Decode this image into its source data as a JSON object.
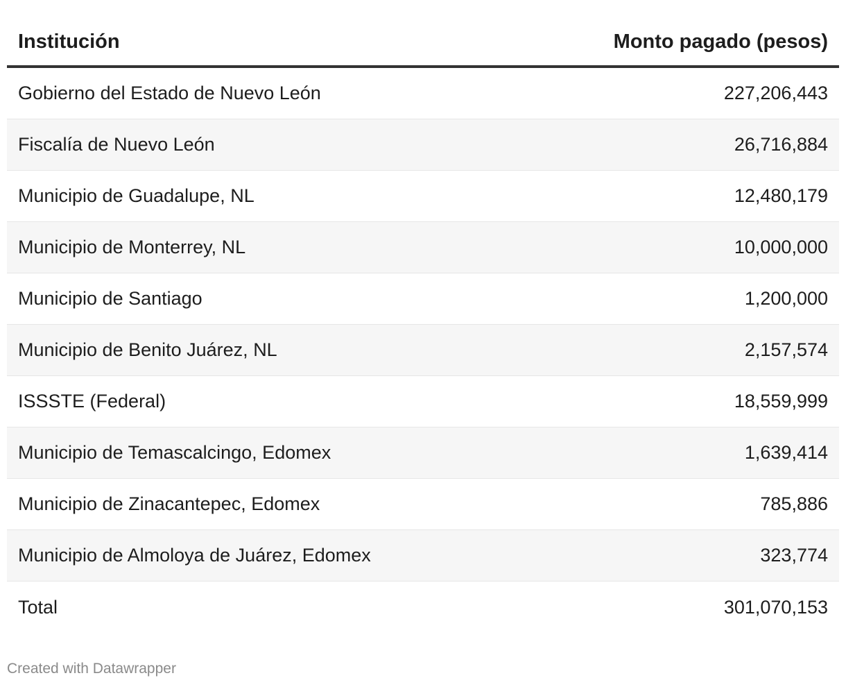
{
  "chart_data": {
    "type": "table",
    "columns": [
      "Institución",
      "Monto pagado (pesos)"
    ],
    "rows": [
      {
        "institucion": "Gobierno del Estado de Nuevo León",
        "monto": "227,206,443"
      },
      {
        "institucion": "Fiscalía de Nuevo León",
        "monto": "26,716,884"
      },
      {
        "institucion": "Municipio de Guadalupe, NL",
        "monto": "12,480,179"
      },
      {
        "institucion": "Municipio de Monterrey, NL",
        "monto": "10,000,000"
      },
      {
        "institucion": "Municipio de Santiago",
        "monto": "1,200,000"
      },
      {
        "institucion": "Municipio de Benito Juárez, NL",
        "monto": "2,157,574"
      },
      {
        "institucion": "ISSSTE (Federal)",
        "monto": "18,559,999"
      },
      {
        "institucion": "Municipio de Temascalcingo, Edomex",
        "monto": "1,639,414"
      },
      {
        "institucion": "Municipio de Zinacantepec, Edomex",
        "monto": "785,886"
      },
      {
        "institucion": "Municipio de Almoloya de Juárez, Edomex",
        "monto": "323,774"
      },
      {
        "institucion": "Total",
        "monto": "301,070,153"
      }
    ],
    "colors": {
      "text": "#1d1d1d",
      "header_rule": "#333333",
      "stripe": "#f6f6f6",
      "footer_text": "#8a8a8a"
    }
  },
  "footer": {
    "credit": "Created with Datawrapper"
  }
}
